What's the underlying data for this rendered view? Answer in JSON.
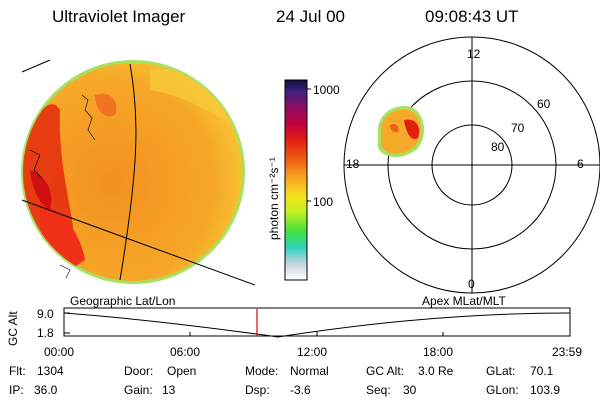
{
  "header": {
    "instrument": "Ultraviolet Imager",
    "date": "24 Jul 00",
    "time": "09:08:43 UT"
  },
  "colorbar": {
    "unit_label": "photon cm⁻²s⁻¹",
    "ticks": [
      "1000",
      "100"
    ]
  },
  "polar_plot": {
    "mlt_labels": [
      "12",
      "18",
      "6",
      "0"
    ],
    "lat_labels": [
      "60",
      "70",
      "80"
    ]
  },
  "timeline": {
    "left_title": "Geographic Lat/Lon",
    "right_title": "Apex MLat/MLT",
    "y_axis_label": "GC Alt",
    "y_ticks": [
      "9.0",
      "1.8"
    ],
    "x_ticks": [
      "00:00",
      "06:00",
      "12:00",
      "18:00",
      "23:59"
    ],
    "marker_time_hours": 9.15
  },
  "info": {
    "flt": {
      "label": "Flt:",
      "value": "1304"
    },
    "ip": {
      "label": "IP:",
      "value": "36.0"
    },
    "door": {
      "label": "Door:",
      "value": "Open"
    },
    "gain": {
      "label": "Gain:",
      "value": "13"
    },
    "mode": {
      "label": "Mode:",
      "value": "Normal"
    },
    "dsp": {
      "label": "Dsp:",
      "value": "-3.6"
    },
    "gcalt": {
      "label": "GC Alt:",
      "value": "3.0 Re"
    },
    "seq": {
      "label": "Seq:",
      "value": "30"
    },
    "glat": {
      "label": "GLat:",
      "value": "70.1"
    },
    "glon": {
      "label": "GLon:",
      "value": "103.9"
    }
  },
  "colors": {
    "earth_base": "#f4a020",
    "earth_red": "#e63010",
    "earth_rim": "#a8e060",
    "marker": "#e00000"
  }
}
